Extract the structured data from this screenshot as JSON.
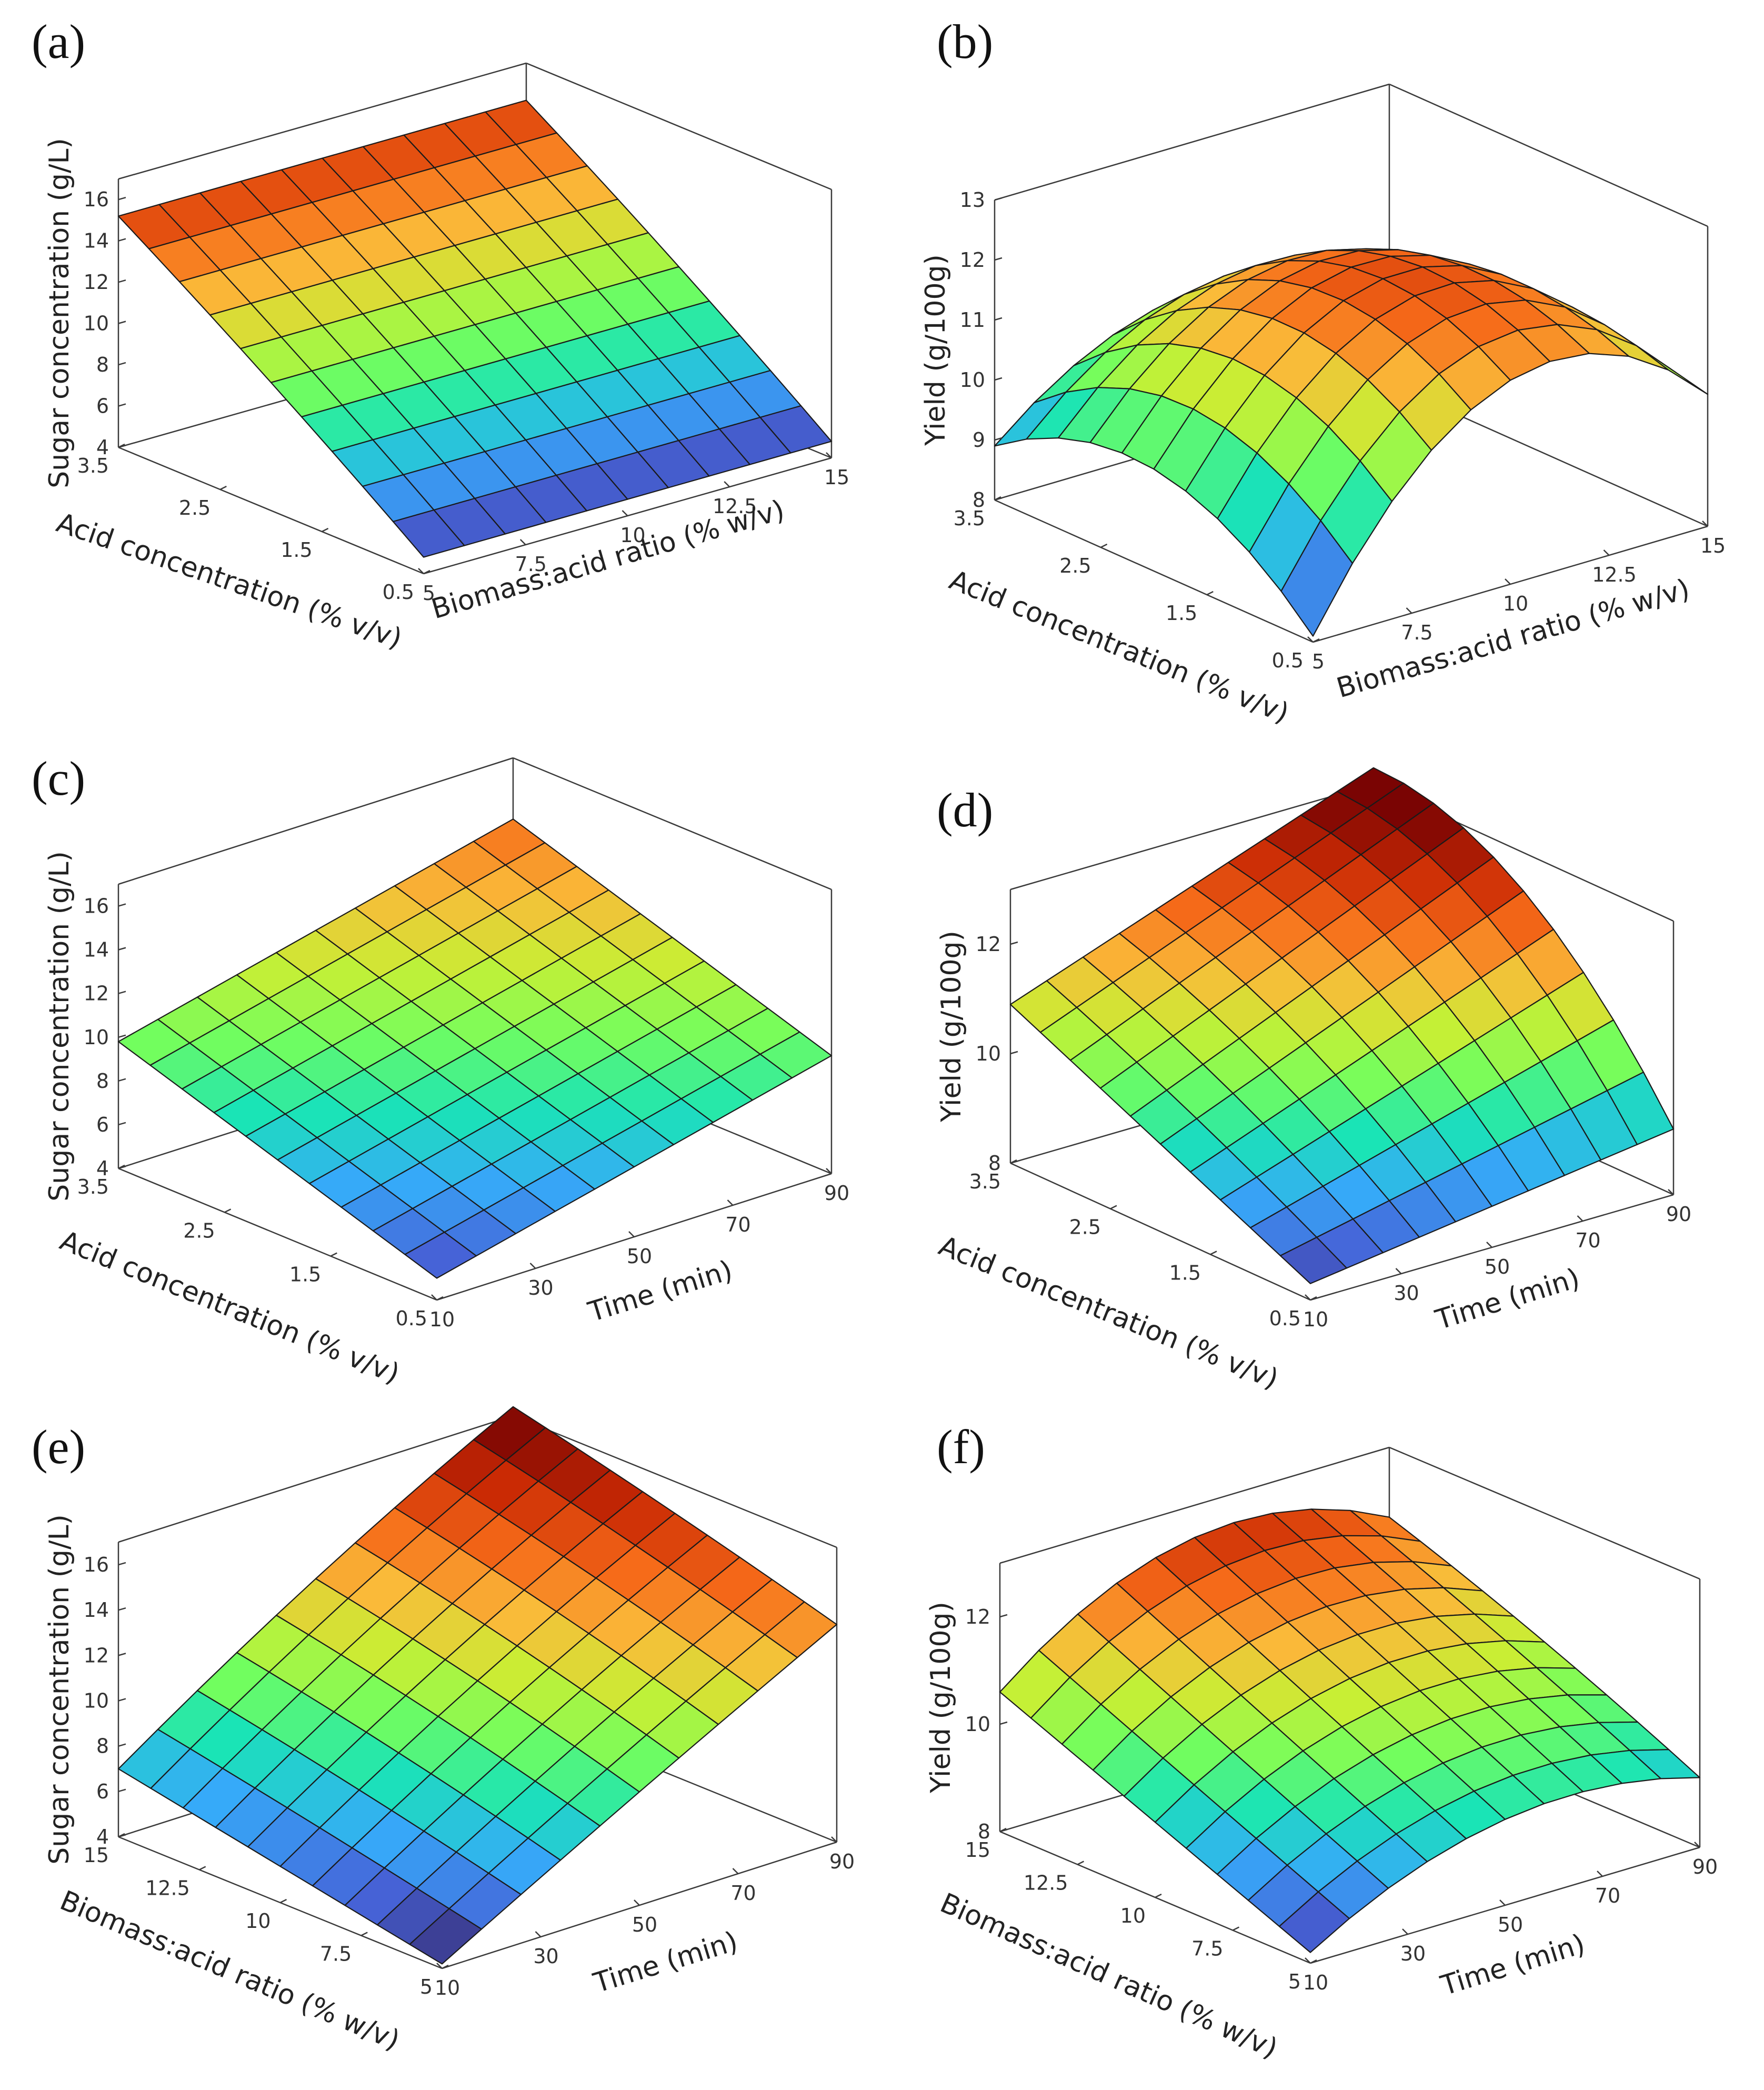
{
  "figure": {
    "colormap": [
      "#30123b",
      "#4662d7",
      "#36aaf9",
      "#1ae4b6",
      "#72fe5e",
      "#c8ef34",
      "#faba39",
      "#f66b19",
      "#ca2a04",
      "#7a0403"
    ]
  },
  "chart_data": [
    {
      "panel": "(a)",
      "type": "surface",
      "x_name": "Biomass:acid ratio (% w/v)",
      "y_name": "Acid concentration (% v/v)",
      "z_name": "Sugar concentration (g/L)",
      "x_range": [
        5,
        15
      ],
      "y_range": [
        0.5,
        3.5
      ],
      "z_range": [
        4,
        17
      ],
      "x_ticks": [
        "5",
        "7.5",
        "10",
        "12.5",
        "15"
      ],
      "y_ticks": [
        "0.5",
        "1.5",
        "2.5",
        "3.5"
      ],
      "z_ticks": [
        "4",
        "6",
        "8",
        "10",
        "12",
        "14",
        "16"
      ],
      "surface": {
        "x_samples": [
          5,
          10,
          15
        ],
        "y_samples": [
          0.5,
          2,
          3.5
        ],
        "z_grid": [
          [
            4.8,
            4.8,
            4.8
          ],
          [
            10.2,
            10.2,
            10.2
          ],
          [
            15.2,
            15.2,
            15.2
          ]
        ]
      }
    },
    {
      "panel": "(b)",
      "type": "surface",
      "x_name": "Biomass:acid ratio (% w/v)",
      "y_name": "Acid concentration (% v/v)",
      "z_name": "Yield (g/100g)",
      "x_range": [
        5,
        15
      ],
      "y_range": [
        0.5,
        3.5
      ],
      "z_range": [
        8,
        13
      ],
      "x_ticks": [
        "5",
        "7.5",
        "10",
        "12.5",
        "15"
      ],
      "y_ticks": [
        "0.5",
        "1.5",
        "2.5",
        "3.5"
      ],
      "z_ticks": [
        "8",
        "9",
        "10",
        "11",
        "12",
        "13"
      ],
      "surface": {
        "x_samples": [
          5,
          10,
          15
        ],
        "y_samples": [
          0.5,
          2,
          3.5
        ],
        "z_grid": [
          [
            8.1,
            11.4,
            10.2
          ],
          [
            9.7,
            12.1,
            10.4
          ],
          [
            8.9,
            10.5,
            9.5
          ]
        ]
      }
    },
    {
      "panel": "(c)",
      "type": "surface",
      "x_name": "Time (min)",
      "y_name": "Acid concentration (% v/v)",
      "z_name": "Sugar concentration (g/L)",
      "x_range": [
        10,
        90
      ],
      "y_range": [
        0.5,
        3.5
      ],
      "z_range": [
        4,
        17
      ],
      "x_ticks": [
        "10",
        "30",
        "50",
        "70",
        "90"
      ],
      "y_ticks": [
        "0.5",
        "1.5",
        "2.5",
        "3.5"
      ],
      "z_ticks": [
        "4",
        "6",
        "8",
        "10",
        "12",
        "14",
        "16"
      ],
      "surface": {
        "x_samples": [
          10,
          50,
          90
        ],
        "y_samples": [
          0.5,
          2,
          3.5
        ],
        "z_grid": [
          [
            5.0,
            7.2,
            9.4
          ],
          [
            7.4,
            9.6,
            11.8
          ],
          [
            9.8,
            12.0,
            14.2
          ]
        ]
      }
    },
    {
      "panel": "(d)",
      "type": "surface",
      "x_name": "Time (min)",
      "y_name": "Acid concentration (% v/v)",
      "z_name": "Yield (g/100g)",
      "x_range": [
        10,
        90
      ],
      "y_range": [
        0.5,
        3.5
      ],
      "z_range": [
        8,
        13
      ],
      "x_ticks": [
        "10",
        "30",
        "50",
        "70",
        "90"
      ],
      "y_ticks": [
        "0.5",
        "1.5",
        "2.5",
        "3.5"
      ],
      "z_ticks": [
        "8",
        "10",
        "12"
      ],
      "surface": {
        "x_samples": [
          10,
          50,
          90
        ],
        "y_samples": [
          0.5,
          2,
          3.5
        ],
        "z_grid": [
          [
            8.3,
            8.75,
            9.2
          ],
          [
            9.6,
            10.95,
            12.3
          ],
          [
            10.9,
            12.1,
            13.3
          ]
        ]
      }
    },
    {
      "panel": "(e)",
      "type": "surface",
      "x_name": "Time (min)",
      "y_name": "Biomass:acid ratio (% w/v)",
      "z_name": "Sugar concentration (g/L)",
      "x_range": [
        10,
        90
      ],
      "y_range": [
        5,
        15
      ],
      "z_range": [
        4,
        17
      ],
      "x_ticks": [
        "10",
        "30",
        "50",
        "70",
        "90"
      ],
      "y_ticks": [
        "5",
        "7.5",
        "10",
        "12.5",
        "15"
      ],
      "z_ticks": [
        "4",
        "6",
        "8",
        "10",
        "12",
        "14",
        "16"
      ],
      "surface": {
        "x_samples": [
          10,
          50,
          90
        ],
        "y_samples": [
          5,
          10,
          15
        ],
        "z_grid": [
          [
            4.2,
            9.0,
            13.6
          ],
          [
            5.6,
            11.0,
            15.6
          ],
          [
            7.0,
            12.6,
            17.4
          ]
        ]
      }
    },
    {
      "panel": "(f)",
      "type": "surface",
      "x_name": "Time (min)",
      "y_name": "Biomass:acid ratio (% w/v)",
      "z_name": "Yield (g/100g)",
      "x_range": [
        10,
        90
      ],
      "y_range": [
        5,
        15
      ],
      "z_range": [
        8,
        13
      ],
      "x_ticks": [
        "10",
        "30",
        "50",
        "70",
        "90"
      ],
      "y_ticks": [
        "5",
        "7.5",
        "10",
        "12.5",
        "15"
      ],
      "z_ticks": [
        "8",
        "10",
        "12"
      ],
      "surface": {
        "x_samples": [
          10,
          50,
          90
        ],
        "y_samples": [
          5,
          10,
          15
        ],
        "z_grid": [
          [
            8.2,
            9.6,
            9.3
          ],
          [
            9.4,
            11.0,
            10.6
          ],
          [
            10.6,
            12.4,
            11.7
          ]
        ]
      }
    }
  ]
}
